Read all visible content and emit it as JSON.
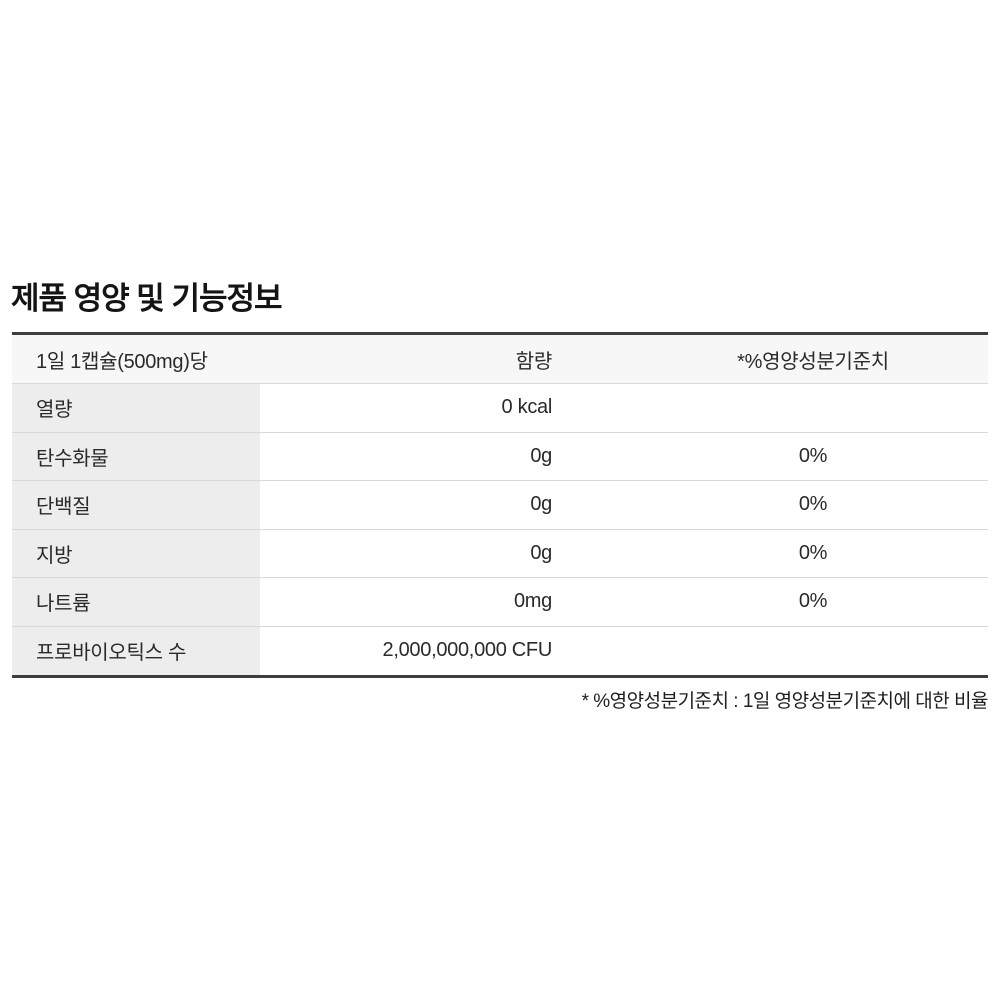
{
  "title": "제품 영양 및 기능정보",
  "table": {
    "header": {
      "serving": "1일 1캡슐(500mg)당",
      "amount": "함량",
      "daily_value": "*%영양성분기준치"
    },
    "rows": [
      {
        "label": "열량",
        "amount": "0 kcal",
        "daily_value": ""
      },
      {
        "label": "탄수화물",
        "amount": "0g",
        "daily_value": "0%"
      },
      {
        "label": "단백질",
        "amount": "0g",
        "daily_value": "0%"
      },
      {
        "label": "지방",
        "amount": "0g",
        "daily_value": "0%"
      },
      {
        "label": "나트륨",
        "amount": "0mg",
        "daily_value": "0%"
      },
      {
        "label": "프로바이오틱스 수",
        "amount": "2,000,000,000 CFU",
        "daily_value": ""
      }
    ]
  },
  "footnote": "* %영양성분기준치 : 1일 영양성분기준치에 대한 비율",
  "colors": {
    "header_bg": "#f7f7f7",
    "label_column_bg": "#ededed",
    "row_divider": "#d9d9d9",
    "table_border": "#3d3d3d",
    "text": "#222222"
  }
}
